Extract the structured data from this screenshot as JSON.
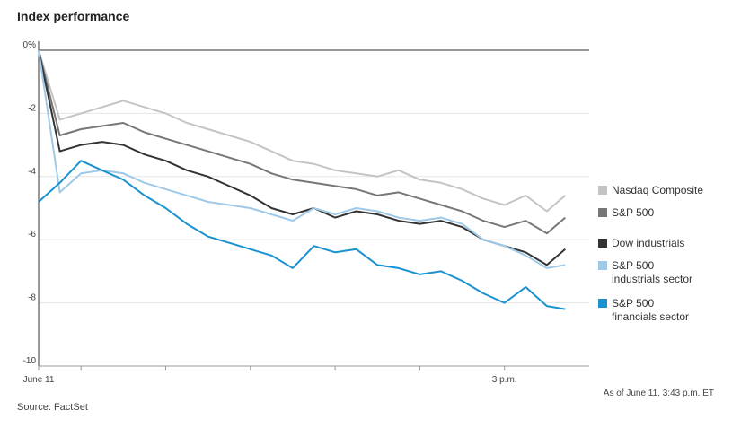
{
  "title": "Index performance",
  "source": "Source: FactSet",
  "note": "As of June 11, 3:43 p.m. ET",
  "chart_data": {
    "type": "line",
    "title": "Index performance",
    "xlabel": "",
    "ylabel": "",
    "ylim": [
      -10,
      0
    ],
    "yticks": [
      0,
      -2,
      -4,
      -6,
      -8,
      -10
    ],
    "ytick_labels": [
      "0%",
      "-2",
      "-4",
      "-6",
      "-8",
      "-10"
    ],
    "xlim": [
      "9:30 a.m.",
      "4:00 p.m."
    ],
    "xticks": [
      {
        "time": "9:30 a.m.",
        "label": "June 11"
      },
      {
        "time": "10:00 a.m.",
        "label": ""
      },
      {
        "time": "11:00 a.m.",
        "label": ""
      },
      {
        "time": "12:00 p.m.",
        "label": ""
      },
      {
        "time": "1:00 p.m.",
        "label": ""
      },
      {
        "time": "2:00 p.m.",
        "label": ""
      },
      {
        "time": "3:00 p.m.",
        "label": "3 p.m."
      }
    ],
    "x": [
      "9:30",
      "9:45",
      "10:00",
      "10:15",
      "10:30",
      "10:45",
      "11:00",
      "11:15",
      "11:30",
      "11:45",
      "12:00",
      "12:15",
      "12:30",
      "12:45",
      "13:00",
      "13:15",
      "13:30",
      "13:45",
      "14:00",
      "14:15",
      "14:30",
      "14:45",
      "15:00",
      "15:15",
      "15:30",
      "15:43"
    ],
    "grid": true,
    "legend": "right",
    "series": [
      {
        "name": "Nasdaq Composite",
        "color": "#c4c4c4",
        "values": [
          0,
          -2.2,
          -2.0,
          -1.8,
          -1.6,
          -1.8,
          -2.0,
          -2.3,
          -2.5,
          -2.7,
          -2.9,
          -3.2,
          -3.5,
          -3.6,
          -3.8,
          -3.9,
          -4.0,
          -3.8,
          -4.1,
          -4.2,
          -4.4,
          -4.7,
          -4.9,
          -4.6,
          -5.1,
          -4.6
        ]
      },
      {
        "name": "S&P 500",
        "color": "#777777",
        "values": [
          0,
          -2.7,
          -2.5,
          -2.4,
          -2.3,
          -2.6,
          -2.8,
          -3.0,
          -3.2,
          -3.4,
          -3.6,
          -3.9,
          -4.1,
          -4.2,
          -4.3,
          -4.4,
          -4.6,
          -4.5,
          -4.7,
          -4.9,
          -5.1,
          -5.4,
          -5.6,
          -5.4,
          -5.8,
          -5.3
        ]
      },
      {
        "name": "Dow industrials",
        "color": "#333333",
        "values": [
          0,
          -3.2,
          -3.0,
          -2.9,
          -3.0,
          -3.3,
          -3.5,
          -3.8,
          -4.0,
          -4.3,
          -4.6,
          -5.0,
          -5.2,
          -5.0,
          -5.3,
          -5.1,
          -5.2,
          -5.4,
          -5.5,
          -5.4,
          -5.6,
          -6.0,
          -6.2,
          -6.4,
          -6.8,
          -6.3
        ]
      },
      {
        "name": "S&P 500 industrials sector",
        "color": "#9ec9e8",
        "values": [
          0,
          -4.5,
          -3.9,
          -3.8,
          -3.9,
          -4.2,
          -4.4,
          -4.6,
          -4.8,
          -4.9,
          -5.0,
          -5.2,
          -5.4,
          -5.0,
          -5.2,
          -5.0,
          -5.1,
          -5.3,
          -5.4,
          -5.3,
          -5.5,
          -6.0,
          -6.2,
          -6.5,
          -6.9,
          -6.8
        ]
      },
      {
        "name": "S&P 500 financials sector",
        "color": "#1a91d1",
        "values": [
          -4.8,
          -4.2,
          -3.5,
          -3.8,
          -4.1,
          -4.6,
          -5.0,
          -5.5,
          -5.9,
          -6.1,
          -6.3,
          -6.5,
          -6.9,
          -6.2,
          -6.4,
          -6.3,
          -6.8,
          -6.9,
          -7.1,
          -7.0,
          -7.3,
          -7.7,
          -8.0,
          -7.5,
          -8.1,
          -8.2
        ]
      }
    ]
  }
}
